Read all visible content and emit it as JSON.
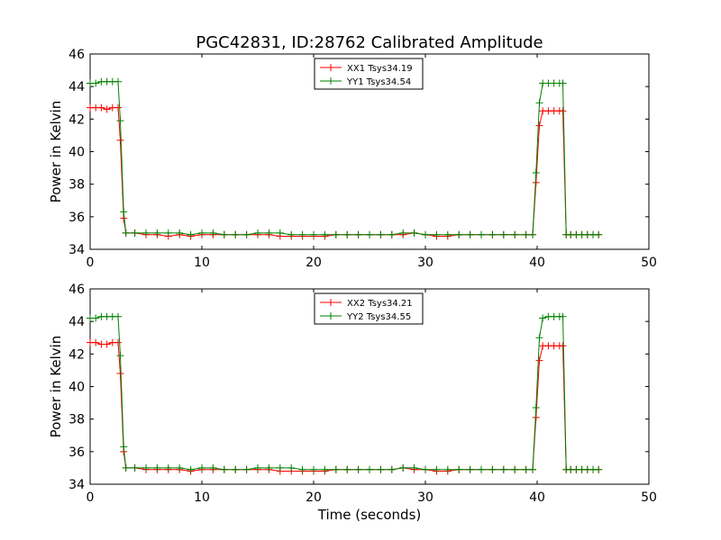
{
  "chart_data": {
    "type": "line",
    "title": "PGC42831, ID:28762 Calibrated Amplitude",
    "xlabel": "Time (seconds)",
    "grid": false,
    "panels": [
      {
        "ylabel": "Power in Kelvin",
        "xlim": [
          0,
          50
        ],
        "ylim": [
          34,
          46
        ],
        "xticks": [
          "0",
          "10",
          "20",
          "30",
          "40",
          "50"
        ],
        "yticks": [
          "34",
          "36",
          "38",
          "40",
          "42",
          "44",
          "46"
        ],
        "legend": "top-center",
        "series": [
          {
            "name": "XX1 Tsys34.19",
            "color": "#ff0000",
            "x": [
              0,
              0.5,
              1.0,
              1.5,
              2.0,
              2.5,
              2.7,
              3.0,
              3.2,
              4.0,
              5.0,
              6.0,
              7.0,
              8.0,
              9.0,
              10.0,
              11.0,
              12.0,
              13.0,
              14.0,
              15.0,
              16.0,
              17.0,
              18.0,
              19.0,
              20.0,
              21.0,
              22.0,
              23.0,
              24.0,
              25.0,
              26.0,
              27.0,
              28.0,
              29.0,
              30.0,
              31.0,
              32.0,
              33.0,
              34.0,
              35.0,
              36.0,
              37.0,
              38.0,
              39.0,
              39.6,
              39.9,
              40.2,
              40.5,
              41.0,
              41.5,
              42.0,
              42.3,
              42.6,
              43.0,
              43.5,
              44.0,
              44.5,
              45.0,
              45.5
            ],
            "y": [
              42.7,
              42.7,
              42.7,
              42.6,
              42.7,
              42.7,
              40.7,
              35.9,
              35.0,
              35.0,
              34.9,
              34.9,
              34.8,
              34.9,
              34.8,
              34.9,
              34.9,
              34.9,
              34.9,
              34.9,
              34.9,
              34.9,
              34.8,
              34.8,
              34.8,
              34.8,
              34.8,
              34.9,
              34.9,
              34.9,
              34.9,
              34.9,
              34.9,
              34.9,
              35.0,
              34.9,
              34.8,
              34.8,
              34.9,
              34.9,
              34.9,
              34.9,
              34.9,
              34.9,
              34.9,
              34.9,
              38.1,
              41.6,
              42.5,
              42.5,
              42.5,
              42.5,
              42.5,
              34.9,
              34.9,
              34.9,
              34.9,
              34.9,
              34.9,
              34.9
            ]
          },
          {
            "name": "YY1 Tsys34.54",
            "color": "#008000",
            "x": [
              0,
              0.5,
              1.0,
              1.5,
              2.0,
              2.5,
              2.7,
              3.0,
              3.2,
              4.0,
              5.0,
              6.0,
              7.0,
              8.0,
              9.0,
              10.0,
              11.0,
              12.0,
              13.0,
              14.0,
              15.0,
              16.0,
              17.0,
              18.0,
              19.0,
              20.0,
              21.0,
              22.0,
              23.0,
              24.0,
              25.0,
              26.0,
              27.0,
              28.0,
              29.0,
              30.0,
              31.0,
              32.0,
              33.0,
              34.0,
              35.0,
              36.0,
              37.0,
              38.0,
              39.0,
              39.6,
              39.9,
              40.2,
              40.5,
              41.0,
              41.5,
              42.0,
              42.3,
              42.6,
              43.0,
              43.5,
              44.0,
              44.5,
              45.0,
              45.5
            ],
            "y": [
              44.2,
              44.2,
              44.3,
              44.3,
              44.3,
              44.3,
              41.9,
              36.3,
              35.0,
              35.0,
              35.0,
              35.0,
              35.0,
              35.0,
              34.9,
              35.0,
              35.0,
              34.9,
              34.9,
              34.9,
              35.0,
              35.0,
              35.0,
              34.9,
              34.9,
              34.9,
              34.9,
              34.9,
              34.9,
              34.9,
              34.9,
              34.9,
              34.9,
              35.0,
              35.0,
              34.9,
              34.9,
              34.9,
              34.9,
              34.9,
              34.9,
              34.9,
              34.9,
              34.9,
              34.9,
              34.9,
              38.7,
              43.0,
              44.2,
              44.2,
              44.2,
              44.2,
              44.2,
              34.9,
              34.9,
              34.9,
              34.9,
              34.9,
              34.9,
              34.9
            ]
          }
        ]
      },
      {
        "ylabel": "Power in Kelvin",
        "xlim": [
          0,
          50
        ],
        "ylim": [
          34,
          46
        ],
        "xticks": [
          "0",
          "10",
          "20",
          "30",
          "40",
          "50"
        ],
        "yticks": [
          "34",
          "36",
          "38",
          "40",
          "42",
          "44",
          "46"
        ],
        "legend": "top-center",
        "series": [
          {
            "name": "XX2 Tsys34.21",
            "color": "#ff0000",
            "x": [
              0,
              0.5,
              1.0,
              1.5,
              2.0,
              2.5,
              2.7,
              3.0,
              3.2,
              4.0,
              5.0,
              6.0,
              7.0,
              8.0,
              9.0,
              10.0,
              11.0,
              12.0,
              13.0,
              14.0,
              15.0,
              16.0,
              17.0,
              18.0,
              19.0,
              20.0,
              21.0,
              22.0,
              23.0,
              24.0,
              25.0,
              26.0,
              27.0,
              28.0,
              29.0,
              30.0,
              31.0,
              32.0,
              33.0,
              34.0,
              35.0,
              36.0,
              37.0,
              38.0,
              39.0,
              39.6,
              39.9,
              40.2,
              40.5,
              41.0,
              41.5,
              42.0,
              42.3,
              42.6,
              43.0,
              43.5,
              44.0,
              44.5,
              45.0,
              45.5
            ],
            "y": [
              42.7,
              42.7,
              42.6,
              42.6,
              42.7,
              42.7,
              40.8,
              36.0,
              35.0,
              35.0,
              34.9,
              34.9,
              34.9,
              34.9,
              34.8,
              34.9,
              34.9,
              34.9,
              34.9,
              34.9,
              34.9,
              34.9,
              34.8,
              34.8,
              34.8,
              34.8,
              34.8,
              34.9,
              34.9,
              34.9,
              34.9,
              34.9,
              34.9,
              35.0,
              34.9,
              34.9,
              34.8,
              34.8,
              34.9,
              34.9,
              34.9,
              34.9,
              34.9,
              34.9,
              34.9,
              34.9,
              38.1,
              41.6,
              42.5,
              42.5,
              42.5,
              42.5,
              42.5,
              34.9,
              34.9,
              34.9,
              34.9,
              34.9,
              34.9,
              34.9
            ]
          },
          {
            "name": "YY2 Tsys34.55",
            "color": "#008000",
            "x": [
              0,
              0.5,
              1.0,
              1.5,
              2.0,
              2.5,
              2.7,
              3.0,
              3.2,
              4.0,
              5.0,
              6.0,
              7.0,
              8.0,
              9.0,
              10.0,
              11.0,
              12.0,
              13.0,
              14.0,
              15.0,
              16.0,
              17.0,
              18.0,
              19.0,
              20.0,
              21.0,
              22.0,
              23.0,
              24.0,
              25.0,
              26.0,
              27.0,
              28.0,
              29.0,
              30.0,
              31.0,
              32.0,
              33.0,
              34.0,
              35.0,
              36.0,
              37.0,
              38.0,
              39.0,
              39.6,
              39.9,
              40.2,
              40.5,
              41.0,
              41.5,
              42.0,
              42.3,
              42.6,
              43.0,
              43.5,
              44.0,
              44.5,
              45.0,
              45.5
            ],
            "y": [
              44.2,
              44.2,
              44.3,
              44.3,
              44.3,
              44.3,
              41.9,
              36.3,
              35.0,
              35.0,
              35.0,
              35.0,
              35.0,
              35.0,
              34.9,
              35.0,
              35.0,
              34.9,
              34.9,
              34.9,
              35.0,
              35.0,
              35.0,
              35.0,
              34.9,
              34.9,
              34.9,
              34.9,
              34.9,
              34.9,
              34.9,
              34.9,
              34.9,
              35.0,
              35.0,
              34.9,
              34.9,
              34.9,
              34.9,
              34.9,
              34.9,
              34.9,
              34.9,
              34.9,
              34.9,
              34.9,
              38.7,
              43.0,
              44.2,
              44.3,
              44.3,
              44.3,
              44.3,
              34.9,
              34.9,
              34.9,
              34.9,
              34.9,
              34.9,
              34.9
            ]
          }
        ]
      }
    ]
  }
}
